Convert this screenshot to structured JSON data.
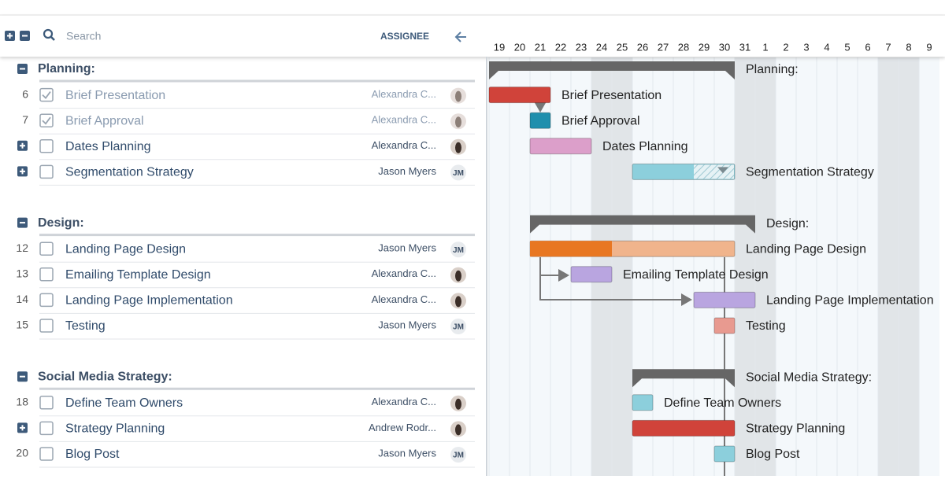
{
  "toolbar": {
    "search_placeholder": "Search",
    "assignee_header": "ASSIGNEE"
  },
  "timeline": {
    "days": [
      19,
      20,
      21,
      22,
      23,
      24,
      25,
      26,
      27,
      28,
      29,
      30,
      31,
      1,
      2,
      3,
      4,
      5,
      6,
      7,
      8,
      9
    ],
    "weekend_days": [
      24,
      25,
      31,
      1,
      7,
      8
    ]
  },
  "groups": [
    {
      "name": "Planning:",
      "start": 19,
      "end": 30,
      "tasks": [
        {
          "id": "6",
          "name": "Brief Presentation",
          "assignee": "Alexandra C...",
          "avatar": "photo",
          "done": true,
          "expandable": false,
          "start": 19,
          "end": 21,
          "color": "#d0433a"
        },
        {
          "id": "7",
          "name": "Brief Approval",
          "assignee": "Alexandra C...",
          "avatar": "photo",
          "done": true,
          "expandable": false,
          "start": 21,
          "end": 21,
          "color": "#1f8fad"
        },
        {
          "id": "",
          "name": "Dates Planning",
          "assignee": "Alexandra C...",
          "avatar": "photo",
          "done": false,
          "expandable": true,
          "start": 21,
          "end": 23,
          "color": "#dc9fca"
        },
        {
          "id": "",
          "name": "Segmentation Strategy",
          "assignee": "Jason Myers",
          "avatar": "JM",
          "done": false,
          "expandable": true,
          "start": 26,
          "end": 30,
          "progress": 60,
          "color": "#8ccfdc"
        }
      ]
    },
    {
      "name": "Design:",
      "start": 21,
      "end": 31,
      "tasks": [
        {
          "id": "12",
          "name": "Landing Page Design",
          "assignee": "Jason Myers",
          "avatar": "JM",
          "done": false,
          "expandable": false,
          "start": 21,
          "end": 30,
          "progress": 40,
          "color": "#e87722"
        },
        {
          "id": "13",
          "name": "Emailing Template Design",
          "assignee": "Alexandra C...",
          "avatar": "photo",
          "done": false,
          "expandable": false,
          "start": 23,
          "end": 24,
          "color": "#b9a5e0"
        },
        {
          "id": "14",
          "name": "Landing Page Implementation",
          "assignee": "Alexandra C...",
          "avatar": "photo",
          "done": false,
          "expandable": false,
          "start": 29,
          "end": 31,
          "color": "#b9a5e0"
        },
        {
          "id": "15",
          "name": "Testing",
          "assignee": "Jason Myers",
          "avatar": "JM",
          "done": false,
          "expandable": false,
          "start": 30,
          "end": 30,
          "color": "#e89a90"
        }
      ]
    },
    {
      "name": "Social Media Strategy:",
      "start": 26,
      "end": 30,
      "tasks": [
        {
          "id": "18",
          "name": "Define Team Owners",
          "assignee": "Alexandra C...",
          "avatar": "photo",
          "done": false,
          "expandable": false,
          "start": 26,
          "end": 26,
          "color": "#8ccfdc"
        },
        {
          "id": "",
          "name": "Strategy Planning",
          "assignee": "Andrew Rodr...",
          "avatar": "photo",
          "done": false,
          "expandable": true,
          "start": 26,
          "end": 30,
          "color": "#d0433a"
        },
        {
          "id": "20",
          "name": "Blog Post",
          "assignee": "Jason Myers",
          "avatar": "JM",
          "done": false,
          "expandable": false,
          "start": 30,
          "end": 30,
          "color": "#8ccfdc"
        }
      ]
    }
  ]
}
